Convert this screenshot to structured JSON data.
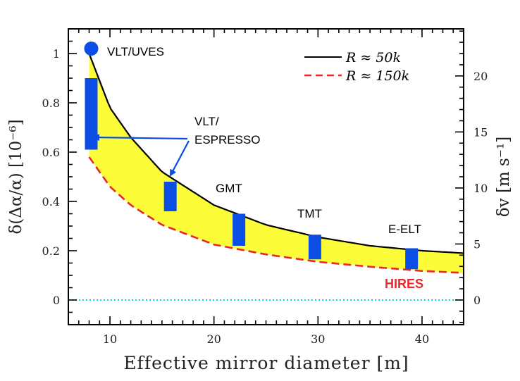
{
  "chart_data": {
    "type": "line",
    "title": "",
    "xlabel": "Effective mirror diameter [m]",
    "ylabel": "δ(Δα/α) [10⁻⁶]",
    "y2label": "δv [m s⁻¹]",
    "xlim": [
      6,
      44
    ],
    "ylim": [
      -0.1,
      1.1
    ],
    "y2lim": [
      -2.2,
      24.2
    ],
    "xticks": [
      10,
      20,
      30,
      40
    ],
    "xtick_labels": [
      "10",
      "20",
      "30",
      "40"
    ],
    "yticks": [
      0,
      0.2,
      0.4,
      0.6,
      0.8,
      1
    ],
    "ytick_labels": [
      "0",
      "0.2",
      "0.4",
      "0.6",
      "0.8",
      "1"
    ],
    "y2ticks": [
      0,
      5,
      10,
      15,
      20
    ],
    "y2tick_labels": [
      "0",
      "5",
      "10",
      "15",
      "20"
    ],
    "legend": {
      "placement": "top-right",
      "entries": [
        {
          "label": "R ≈ 50k",
          "color": "#000000",
          "style": "solid"
        },
        {
          "label": "R ≈ 150k",
          "color": "#e8282a",
          "style": "dashed"
        }
      ]
    },
    "series": [
      {
        "name": "R ≈ 50k",
        "color": "#000000",
        "style": "solid",
        "x": [
          8,
          10,
          12,
          15,
          20,
          25,
          30,
          35,
          40,
          44
        ],
        "y": [
          1.0,
          0.78,
          0.66,
          0.52,
          0.385,
          0.305,
          0.255,
          0.22,
          0.2,
          0.19
        ]
      },
      {
        "name": "R ≈ 150k",
        "color": "#e8282a",
        "style": "dashed",
        "x": [
          8,
          10,
          12,
          15,
          20,
          25,
          30,
          35,
          40,
          44
        ],
        "y": [
          0.58,
          0.46,
          0.385,
          0.305,
          0.225,
          0.185,
          0.155,
          0.135,
          0.118,
          0.11
        ]
      }
    ],
    "fill_between": {
      "color": "#fdfc38"
    },
    "zero_line": {
      "y": 0,
      "color": "#00dddd",
      "style": "dotted"
    },
    "point": {
      "label": "VLT/UVES",
      "x": 8.2,
      "y": 1.02,
      "color": "#0a4ee6"
    },
    "ranges": [
      {
        "label": "VLT/ESPRESSO",
        "x": 8.2,
        "ylow": 0.61,
        "yhigh": 0.9,
        "color": "#0a4ee6"
      },
      {
        "label": "",
        "x": 15.8,
        "ylow": 0.36,
        "yhigh": 0.48,
        "color": "#0a4ee6"
      },
      {
        "label": "GMT",
        "x": 22.4,
        "ylow": 0.22,
        "yhigh": 0.35,
        "color": "#0a4ee6"
      },
      {
        "label": "TMT",
        "x": 29.7,
        "ylow": 0.165,
        "yhigh": 0.265,
        "color": "#0a4ee6"
      },
      {
        "label": "E-ELT",
        "x": 39,
        "ylow": 0.125,
        "yhigh": 0.21,
        "color": "#0a4ee6"
      }
    ],
    "annotations": [
      {
        "text": "VLT/",
        "color": "#000000"
      },
      {
        "text": "ESPRESSO",
        "color": "#000000"
      },
      {
        "text": "HIRES",
        "color": "#e8282a"
      }
    ],
    "grid": false
  }
}
